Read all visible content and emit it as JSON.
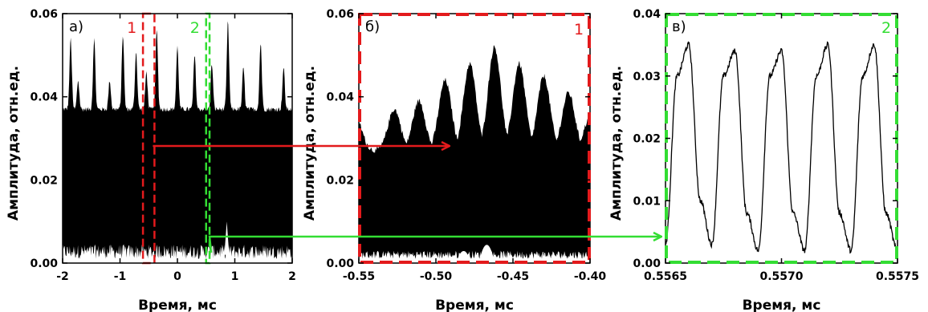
{
  "colors": {
    "region1": "#e31a1c",
    "region2": "#33dd33",
    "signal": "#000000"
  },
  "chart_data": [
    {
      "type": "line",
      "panel_label": "а)",
      "xlabel": "Время, мс",
      "ylabel": "Амплитуда, отн.ед.",
      "xlim": [
        -2,
        2
      ],
      "ylim": [
        0,
        0.06
      ],
      "xticks": [
        "-2",
        "-1",
        "0",
        "1",
        "2"
      ],
      "yticks": [
        "0.00",
        "0.02",
        "0.04",
        "0.06"
      ],
      "signal": {
        "baseline_envelope": 0.037,
        "peaks": [
          {
            "x": -1.86,
            "y": 0.054
          },
          {
            "x": -1.73,
            "y": 0.044
          },
          {
            "x": -1.45,
            "y": 0.054
          },
          {
            "x": -1.18,
            "y": 0.044
          },
          {
            "x": -0.95,
            "y": 0.055
          },
          {
            "x": -0.72,
            "y": 0.051
          },
          {
            "x": -0.54,
            "y": 0.046
          },
          {
            "x": -0.36,
            "y": 0.056
          },
          {
            "x": 0.0,
            "y": 0.052
          },
          {
            "x": 0.3,
            "y": 0.05
          },
          {
            "x": 0.6,
            "y": 0.048
          },
          {
            "x": 0.88,
            "y": 0.058
          },
          {
            "x": 1.15,
            "y": 0.047
          },
          {
            "x": 1.45,
            "y": 0.053
          },
          {
            "x": 1.85,
            "y": 0.047
          }
        ],
        "spike": {
          "x": 0.86,
          "y": 0.01
        }
      },
      "regions": [
        {
          "label": "1",
          "x0": -0.6,
          "x1": -0.4
        },
        {
          "label": "2",
          "x0": 0.5,
          "x1": 0.56
        }
      ]
    },
    {
      "type": "line",
      "panel_label": "б)",
      "box_label": "1",
      "xlabel": "Время, мс",
      "ylabel": "Амплитуда, отн.ед.",
      "xlim": [
        -0.55,
        -0.4
      ],
      "ylim": [
        0,
        0.06
      ],
      "xticks": [
        "-0.55",
        "-0.50",
        "-0.45",
        "-0.40"
      ],
      "yticks": [
        "0.00",
        "0.02",
        "0.04",
        "0.06"
      ],
      "signal": {
        "peaks": [
          {
            "x": -0.552,
            "y": 0.035
          },
          {
            "x": -0.527,
            "y": 0.037
          },
          {
            "x": -0.511,
            "y": 0.039
          },
          {
            "x": -0.494,
            "y": 0.044
          },
          {
            "x": -0.478,
            "y": 0.048
          },
          {
            "x": -0.462,
            "y": 0.052
          },
          {
            "x": -0.446,
            "y": 0.048
          },
          {
            "x": -0.43,
            "y": 0.045
          },
          {
            "x": -0.414,
            "y": 0.041
          },
          {
            "x": -0.4,
            "y": 0.035
          }
        ],
        "bottom_bump": {
          "x": -0.467,
          "y": 0.008
        }
      }
    },
    {
      "type": "line",
      "panel_label": "в)",
      "box_label": "2",
      "xlabel": "Время, мс",
      "ylabel": "Амплитуда, отн.ед.",
      "xlim": [
        0.5565,
        0.5575
      ],
      "ylim": [
        0,
        0.04
      ],
      "xticks": [
        "0.5565",
        "0.5570",
        "0.5575"
      ],
      "yticks": [
        "0.00",
        "0.01",
        "0.02",
        "0.03",
        "0.04"
      ],
      "series": [
        {
          "x": [
            0.5565,
            0.55655,
            0.5566,
            0.55665,
            0.5567,
            0.55675,
            0.5568,
            0.55685,
            0.5569,
            0.55695,
            0.557,
            0.55705,
            0.5571,
            0.55715,
            0.5572,
            0.55725,
            0.5573,
            0.55735,
            0.5574,
            0.55745,
            0.5575
          ],
          "y": [
            0.003,
            0.03,
            0.035,
            0.01,
            0.003,
            0.03,
            0.034,
            0.008,
            0.002,
            0.03,
            0.034,
            0.008,
            0.002,
            0.03,
            0.035,
            0.008,
            0.002,
            0.03,
            0.035,
            0.008,
            0.002
          ]
        }
      ]
    }
  ]
}
